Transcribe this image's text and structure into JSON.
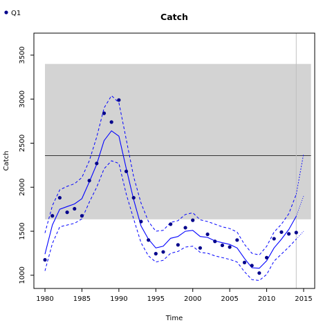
{
  "chart_data": {
    "type": "line",
    "title": "Catch",
    "xlabel": "Time",
    "ylabel": "Catch",
    "xlim": [
      1978.5,
      2016.5
    ],
    "ylim": [
      850,
      3750
    ],
    "xticks": [
      1980,
      1985,
      1990,
      1995,
      2000,
      2005,
      2010,
      2015
    ],
    "yticks": [
      1000,
      1500,
      2000,
      2500,
      3000,
      3500
    ],
    "grid": false,
    "legend": {
      "placement": "top-left",
      "entries": [
        "Q1"
      ]
    },
    "colors": {
      "series": "#0000ff",
      "points": "#00008b",
      "band": "#d3d3d3",
      "hline": "#000000",
      "vline": "#c0c0c0"
    },
    "band": {
      "x": [
        1980,
        2016
      ],
      "y": [
        1635,
        3400
      ]
    },
    "hline": 2360,
    "vline": 2014,
    "observed": {
      "name": "Q1",
      "x": [
        1980,
        1981,
        1982,
        1983,
        1984,
        1985,
        1986,
        1987,
        1988,
        1989,
        1990,
        1991,
        1992,
        1993,
        1994,
        1995,
        1996,
        1997,
        1998,
        1999,
        2000,
        2001,
        2002,
        2003,
        2004,
        2005,
        2006,
        2007,
        2008,
        2009,
        2010,
        2011,
        2012,
        2013,
        2014
      ],
      "y": [
        1175,
        1675,
        1880,
        1715,
        1755,
        1675,
        2075,
        2270,
        2840,
        2740,
        2990,
        2180,
        1880,
        1610,
        1400,
        1245,
        1265,
        1580,
        1345,
        1540,
        1625,
        1310,
        1465,
        1385,
        1340,
        1320,
        1400,
        1145,
        1110,
        1025,
        1200,
        1415,
        1490,
        1470,
        1485
      ]
    },
    "series": [
      {
        "role": "fit",
        "x": [
          1980,
          1981,
          1982,
          1983,
          1984,
          1985,
          1986,
          1987,
          1988,
          1989,
          1990,
          1991,
          1992,
          1993,
          1994,
          1995,
          1996,
          1997,
          1998,
          1999,
          2000,
          2001,
          2002,
          2003,
          2004,
          2005,
          2006,
          2007,
          2008,
          2009,
          2010,
          2011,
          2012,
          2013,
          2014
        ],
        "values": [
          1240,
          1570,
          1750,
          1780,
          1810,
          1870,
          2060,
          2260,
          2530,
          2640,
          2580,
          2210,
          1860,
          1560,
          1410,
          1310,
          1330,
          1420,
          1440,
          1500,
          1510,
          1440,
          1430,
          1390,
          1370,
          1350,
          1310,
          1190,
          1085,
          1080,
          1165,
          1310,
          1410,
          1520,
          1670
        ]
      },
      {
        "role": "upper",
        "x": [
          1980,
          1981,
          1982,
          1983,
          1984,
          1985,
          1986,
          1987,
          1988,
          1989,
          1990,
          1991,
          1992,
          1993,
          1994,
          1995,
          1996,
          1997,
          1998,
          1999,
          2000,
          2001,
          2002,
          2003,
          2004,
          2005,
          2006,
          2007,
          2008,
          2009,
          2010,
          2011,
          2012,
          2013,
          2014
        ],
        "values": [
          1480,
          1790,
          1970,
          2010,
          2040,
          2110,
          2300,
          2570,
          2900,
          3040,
          2960,
          2540,
          2120,
          1820,
          1610,
          1500,
          1510,
          1600,
          1620,
          1690,
          1710,
          1630,
          1610,
          1580,
          1550,
          1530,
          1490,
          1350,
          1250,
          1230,
          1330,
          1490,
          1580,
          1700,
          1920
        ]
      },
      {
        "role": "lower",
        "x": [
          1980,
          1981,
          1982,
          1983,
          1984,
          1985,
          1986,
          1987,
          1988,
          1989,
          1990,
          1991,
          1992,
          1993,
          1994,
          1995,
          1996,
          1997,
          1998,
          1999,
          2000,
          2001,
          2002,
          2003,
          2004,
          2005,
          2006,
          2007,
          2008,
          2009,
          2010,
          2011,
          2012,
          2013,
          2014
        ],
        "values": [
          1050,
          1360,
          1550,
          1570,
          1590,
          1640,
          1830,
          2000,
          2210,
          2300,
          2270,
          1920,
          1640,
          1370,
          1220,
          1150,
          1170,
          1250,
          1270,
          1320,
          1330,
          1260,
          1250,
          1220,
          1200,
          1180,
          1150,
          1040,
          950,
          940,
          1010,
          1160,
          1240,
          1320,
          1410
        ]
      },
      {
        "role": "forecast-upper",
        "x": [
          2014,
          2015
        ],
        "values": [
          1920,
          2380
        ]
      },
      {
        "role": "forecast-mid",
        "x": [
          2014,
          2015
        ],
        "values": [
          1670,
          1900
        ]
      },
      {
        "role": "forecast-lower",
        "x": [
          2014,
          2015
        ],
        "values": [
          1410,
          1500
        ]
      }
    ]
  }
}
